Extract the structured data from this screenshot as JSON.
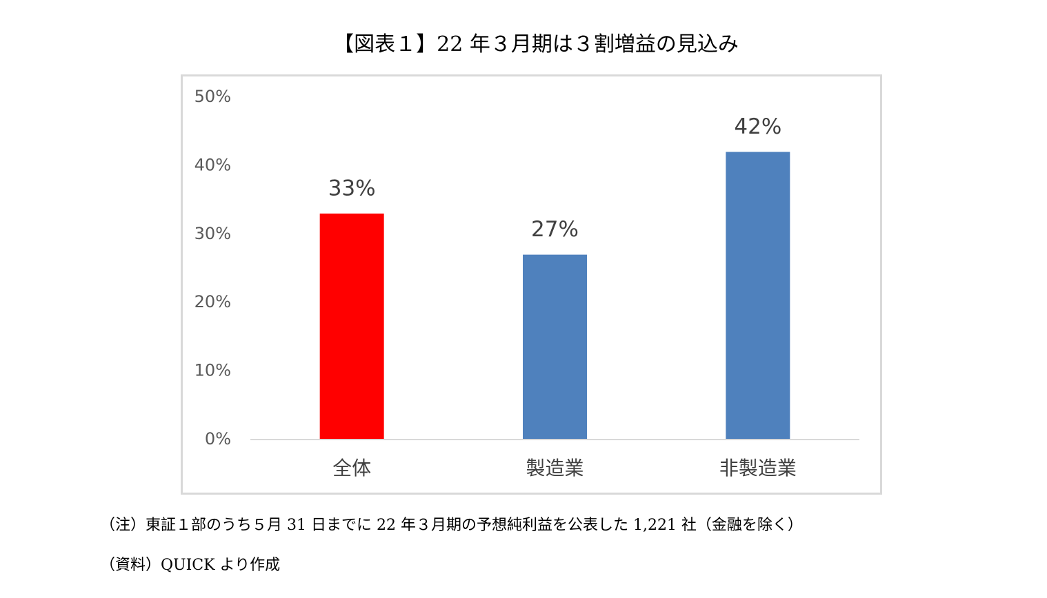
{
  "chart_data": {
    "type": "bar",
    "title": "【図表１】22 年３月期は３割増益の見込み",
    "categories": [
      "全体",
      "製造業",
      "非製造業"
    ],
    "values": [
      33,
      27,
      42
    ],
    "value_labels": [
      "33%",
      "27%",
      "42%"
    ],
    "colors": [
      "#ff0000",
      "#4f81bd",
      "#4f81bd"
    ],
    "ylim": [
      0,
      50
    ],
    "yticks": [
      {
        "value": 0,
        "label": "0%"
      },
      {
        "value": 10,
        "label": "10%"
      },
      {
        "value": 20,
        "label": "20%"
      },
      {
        "value": 30,
        "label": "30%"
      },
      {
        "value": 40,
        "label": "40%"
      },
      {
        "value": 50,
        "label": "50%"
      }
    ],
    "grid": false,
    "note": "（注）東証１部のうち５月 31 日までに 22 年３月期の予想純利益を公表した 1,221 社（金融を除く）",
    "source": "（資料）QUICK より作成"
  }
}
